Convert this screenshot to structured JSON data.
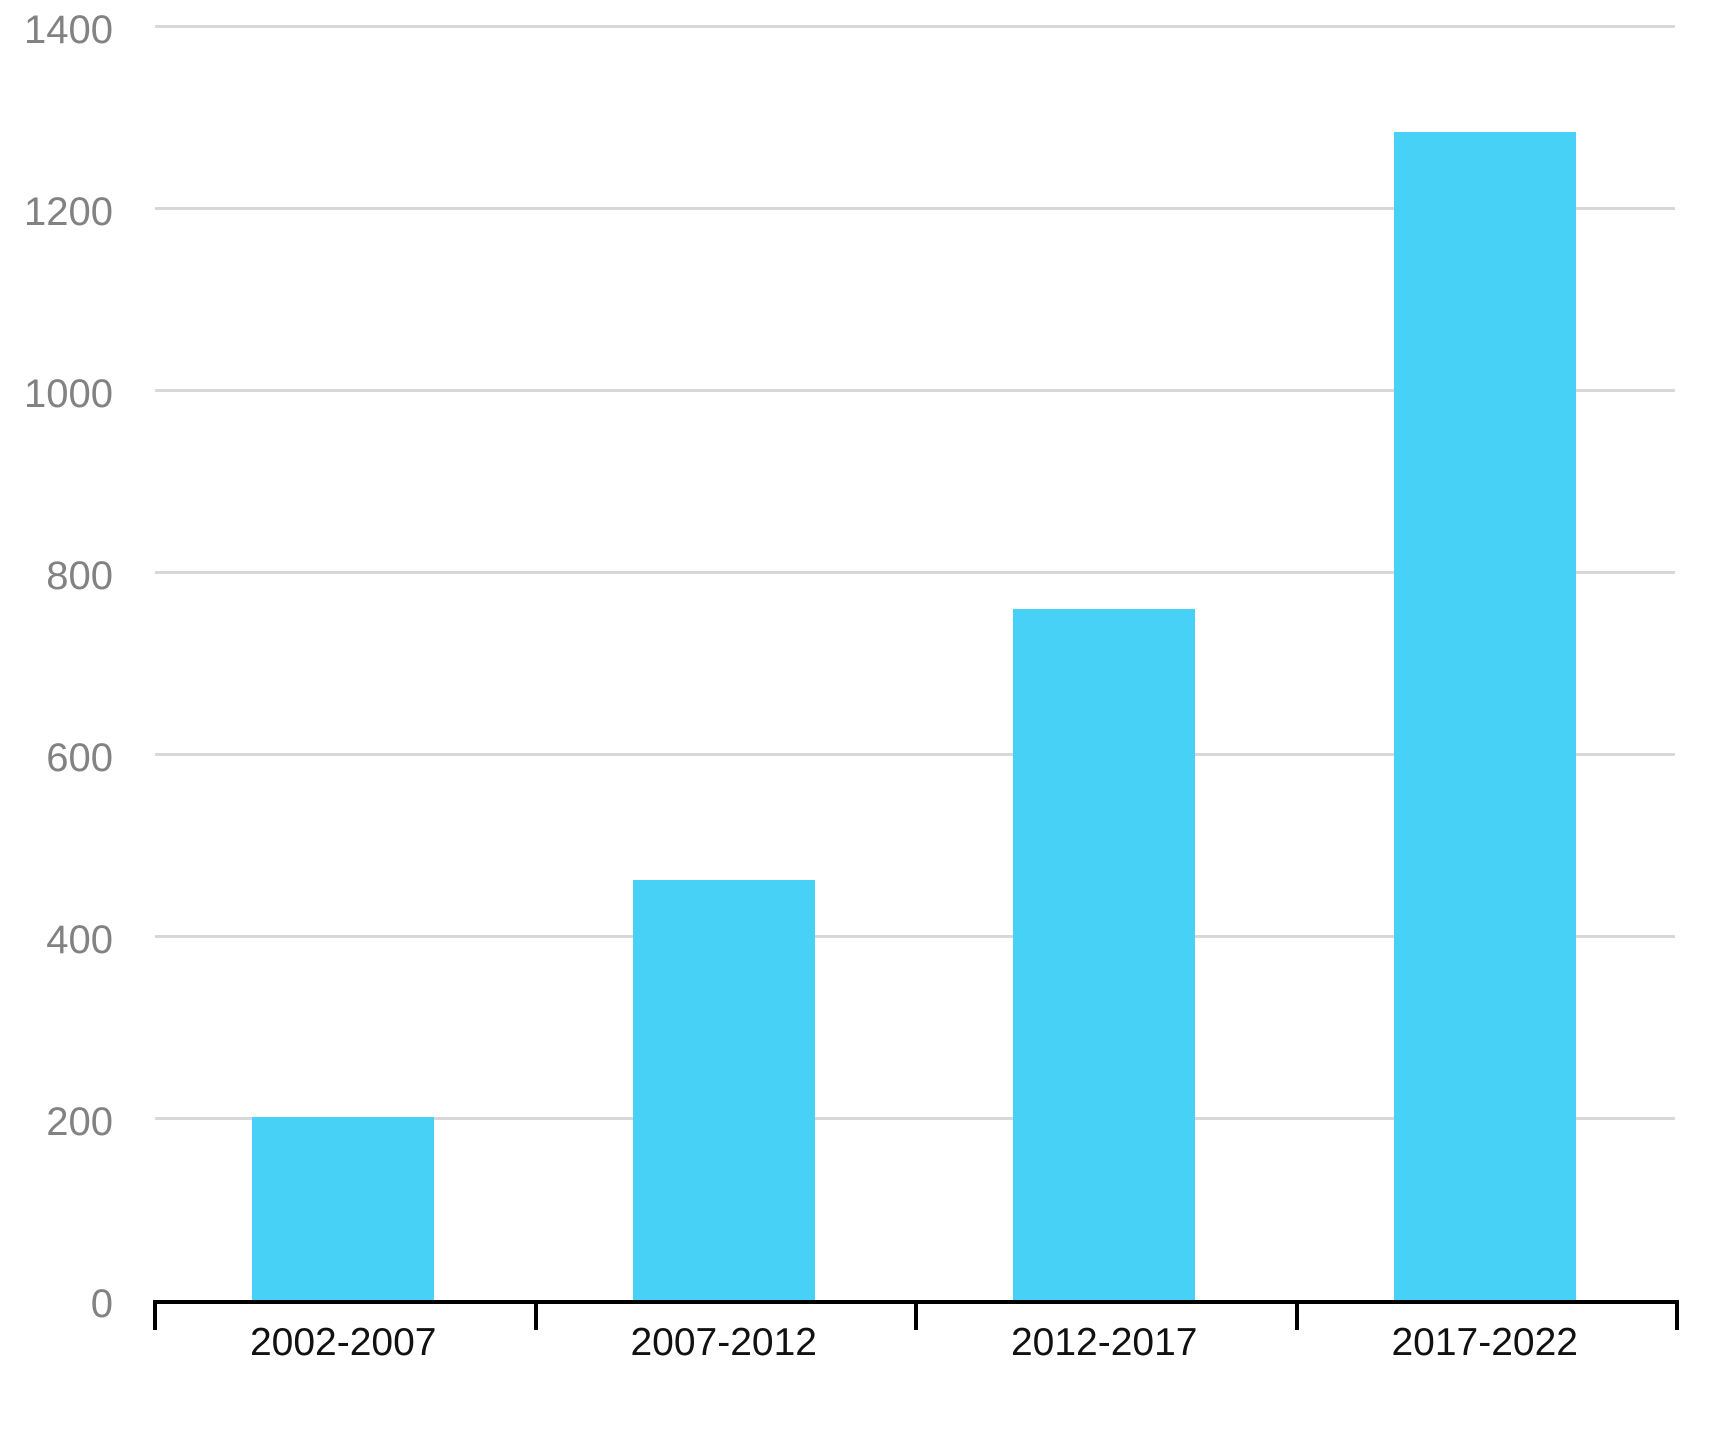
{
  "chart_data": {
    "type": "bar",
    "title": "",
    "xlabel": "",
    "ylabel": "",
    "categories": [
      "2002-2007",
      "2007-2012",
      "2012-2017",
      "2017-2022"
    ],
    "values": [
      201,
      462,
      759,
      1283
    ],
    "y_ticks": [
      0,
      200,
      400,
      600,
      800,
      1000,
      1200,
      1400
    ],
    "ylim": [
      0,
      1400
    ],
    "grid": "horizontal",
    "legend": "none",
    "colors": {
      "bar": "#47D1F7",
      "gridline": "#D8D8D8",
      "axis": "#000000",
      "y_tick_label": "#828282",
      "x_tick_label": "#111111",
      "background": "#FFFFFF"
    }
  }
}
